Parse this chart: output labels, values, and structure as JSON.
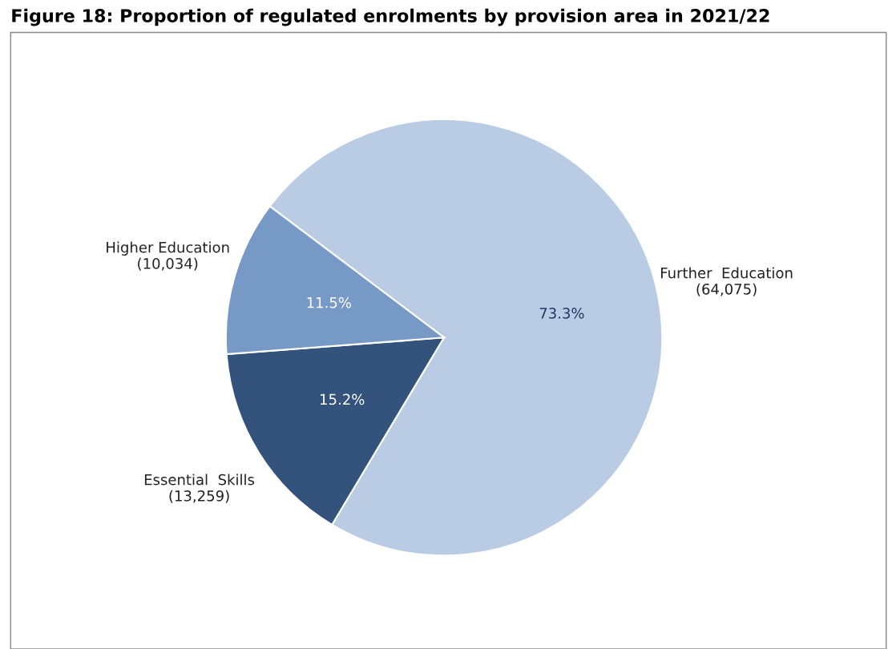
{
  "chart_data": {
    "type": "pie",
    "title": "Figure 18: Proportion of regulated enrolments by provision area in 2021/22",
    "categories": [
      "Further  Education\n(64,075)",
      "Essential  Skills\n(13,259)",
      "Higher Education\n(10,034)"
    ],
    "values": [
      73.3,
      15.2,
      11.5
    ],
    "value_labels": [
      "73.3%",
      "15.2%",
      "11.5%"
    ],
    "colors": [
      "#b9cce4",
      "#34537c",
      "#7799c6"
    ]
  }
}
